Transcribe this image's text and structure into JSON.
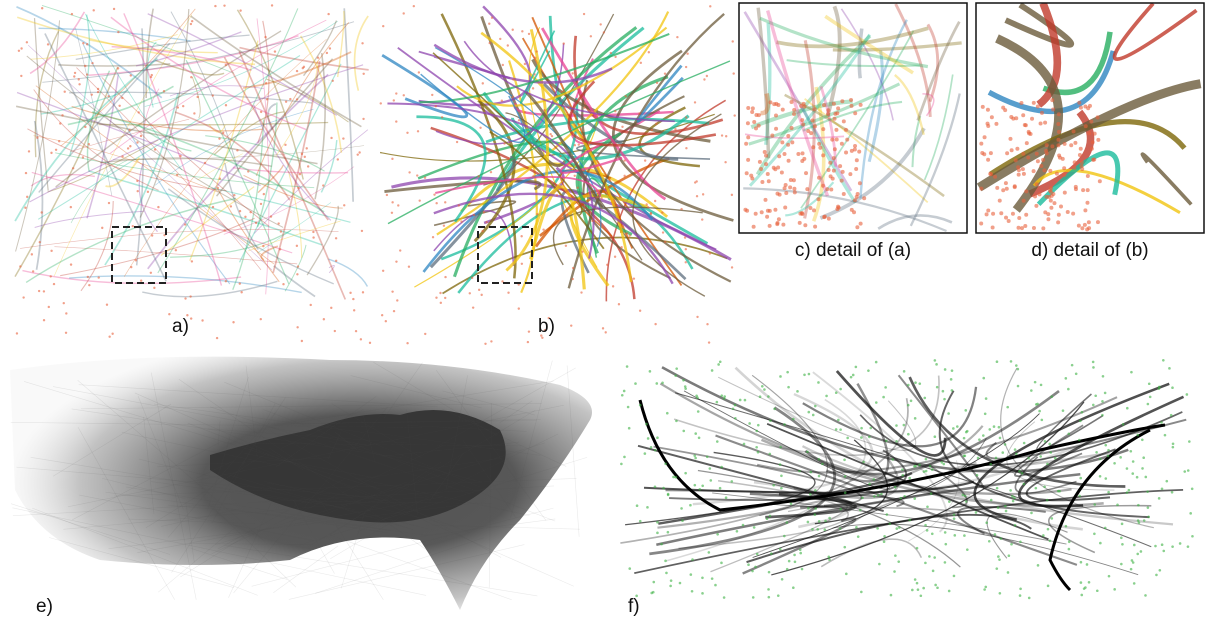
{
  "panels": [
    {
      "label": "a)"
    },
    {
      "label": "b)"
    },
    {
      "label": "c) detail of (a)"
    },
    {
      "label": "d) detail of (b)"
    },
    {
      "label": "e)"
    },
    {
      "label": "f)"
    }
  ]
}
